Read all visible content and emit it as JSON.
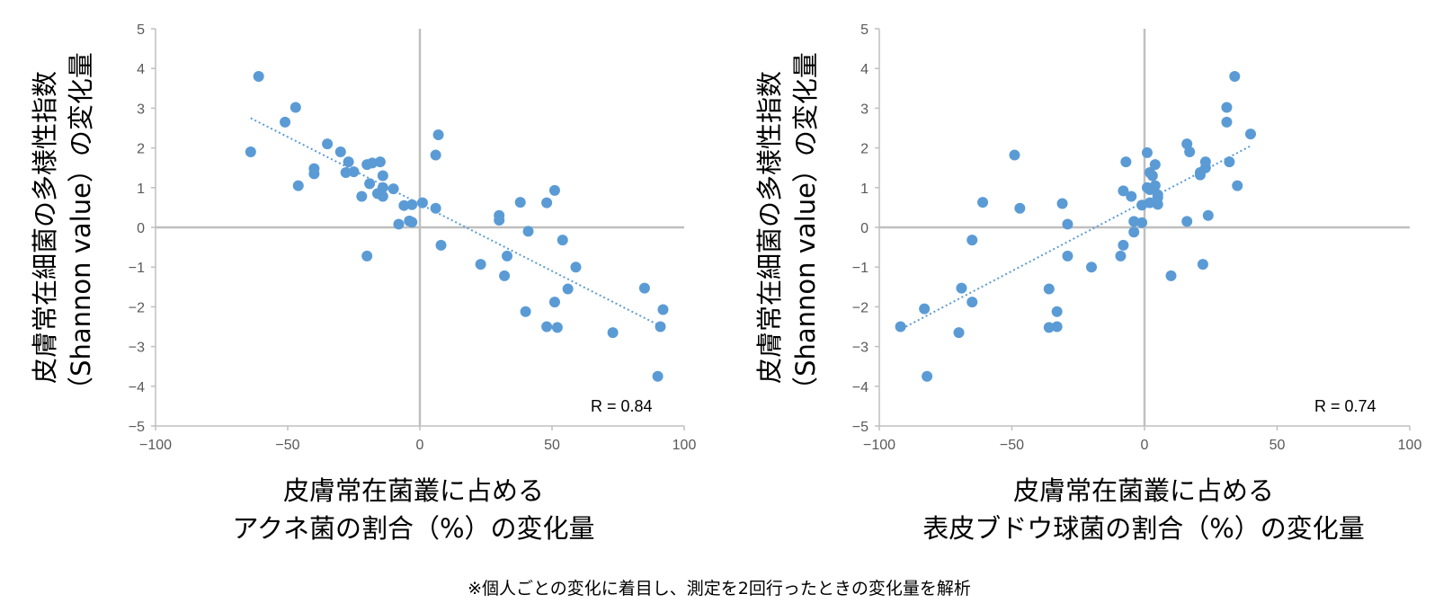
{
  "footnote": "※個人ごとの変化に着目し、測定を2回行ったときの変化量を解析",
  "colors": {
    "point": "#5b9bd5",
    "trend": "#5b9bd5",
    "axis": "#bfbfbf"
  },
  "chart_data": [
    {
      "type": "scatter",
      "title": "",
      "ylabel_line1": "皮膚常在細菌の多様性指数",
      "ylabel_line2": "（Shannon value）の変化量",
      "xlabel_line1": "皮膚常在菌叢に占める",
      "xlabel_line2": "アクネ菌の割合（%）の変化量",
      "annotation": "R = 0.84",
      "xlim": [
        -100,
        100
      ],
      "ylim": [
        -5,
        5
      ],
      "xticks": [
        -100,
        -50,
        0,
        50,
        100
      ],
      "xtick_labels": [
        "−100",
        "−50",
        "0",
        "50",
        "100"
      ],
      "yticks": [
        5,
        4,
        3,
        2,
        1,
        0,
        -1,
        -2,
        -3,
        -4,
        -5
      ],
      "ytick_labels": [
        "5",
        "4",
        "3",
        "2",
        "1",
        "0",
        "−1",
        "−2",
        "−3",
        "−4",
        "−5"
      ],
      "trendline": {
        "x": [
          -64,
          90
        ],
        "y": [
          2.75,
          -2.45
        ]
      },
      "points": [
        [
          -61,
          3.8
        ],
        [
          -64,
          1.9
        ],
        [
          -47,
          3.02
        ],
        [
          -51,
          2.65
        ],
        [
          -46,
          1.05
        ],
        [
          -35,
          2.1
        ],
        [
          -40,
          1.48
        ],
        [
          -40,
          1.35
        ],
        [
          -30,
          1.9
        ],
        [
          -27,
          1.65
        ],
        [
          -28,
          1.38
        ],
        [
          -25,
          1.4
        ],
        [
          -20,
          1.58
        ],
        [
          -18,
          1.62
        ],
        [
          -15,
          1.65
        ],
        [
          -16,
          0.85
        ],
        [
          -14,
          1.3
        ],
        [
          -14,
          1.0
        ],
        [
          -19,
          1.1
        ],
        [
          -22,
          0.78
        ],
        [
          -14,
          0.78
        ],
        [
          -10,
          0.97
        ],
        [
          -6,
          0.55
        ],
        [
          -3,
          0.57
        ],
        [
          1,
          0.62
        ],
        [
          -8,
          0.08
        ],
        [
          -4,
          0.16
        ],
        [
          -3,
          0.13
        ],
        [
          -20,
          -0.72
        ],
        [
          6,
          1.82
        ],
        [
          7,
          2.33
        ],
        [
          6,
          0.48
        ],
        [
          8,
          -0.45
        ],
        [
          30,
          0.3
        ],
        [
          30,
          0.18
        ],
        [
          38,
          0.63
        ],
        [
          41,
          -0.1
        ],
        [
          51,
          0.93
        ],
        [
          33,
          -0.72
        ],
        [
          23,
          -0.93
        ],
        [
          32,
          -1.22
        ],
        [
          54,
          -0.32
        ],
        [
          59,
          -1.0
        ],
        [
          56,
          -1.55
        ],
        [
          48,
          0.62
        ],
        [
          40,
          -2.12
        ],
        [
          51,
          -1.88
        ],
        [
          48,
          -2.5
        ],
        [
          52,
          -2.52
        ],
        [
          73,
          -2.65
        ],
        [
          85,
          -1.53
        ],
        [
          92,
          -2.07
        ],
        [
          91,
          -2.5
        ],
        [
          90,
          -3.75
        ]
      ]
    },
    {
      "type": "scatter",
      "title": "",
      "ylabel_line1": "皮膚常在細菌の多様性指数",
      "ylabel_line2": "（Shannon value）の変化量",
      "xlabel_line1": "皮膚常在菌叢に占める",
      "xlabel_line2": "表皮ブドウ球菌の割合（%）の変化量",
      "annotation": "R = 0.74",
      "xlim": [
        -100,
        100
      ],
      "ylim": [
        -5,
        5
      ],
      "xticks": [
        -100,
        -50,
        0,
        50,
        100
      ],
      "xtick_labels": [
        "−100",
        "−50",
        "0",
        "50",
        "100"
      ],
      "yticks": [
        5,
        4,
        3,
        2,
        1,
        0,
        -1,
        -2,
        -3,
        -4,
        -5
      ],
      "ytick_labels": [
        "5",
        "4",
        "3",
        "2",
        "1",
        "0",
        "−1",
        "−2",
        "−3",
        "−4",
        "−5"
      ],
      "trendline": {
        "x": [
          -90,
          40
        ],
        "y": [
          -2.5,
          2.05
        ]
      },
      "points": [
        [
          34,
          3.8
        ],
        [
          31,
          3.02
        ],
        [
          31,
          2.65
        ],
        [
          40,
          2.35
        ],
        [
          16,
          2.1
        ],
        [
          17,
          1.9
        ],
        [
          32,
          1.65
        ],
        [
          23,
          1.65
        ],
        [
          23,
          1.5
        ],
        [
          21,
          1.38
        ],
        [
          21,
          1.32
        ],
        [
          35,
          1.05
        ],
        [
          4,
          1.58
        ],
        [
          2,
          1.38
        ],
        [
          3,
          1.3
        ],
        [
          1,
          1.88
        ],
        [
          1,
          1.0
        ],
        [
          2,
          0.95
        ],
        [
          4,
          1.05
        ],
        [
          5,
          0.82
        ],
        [
          5,
          0.58
        ],
        [
          5,
          0.75
        ],
        [
          2,
          0.62
        ],
        [
          -1,
          0.56
        ],
        [
          -5,
          0.78
        ],
        [
          -8,
          0.92
        ],
        [
          -7,
          1.65
        ],
        [
          -49,
          1.82
        ],
        [
          -47,
          0.48
        ],
        [
          -61,
          0.63
        ],
        [
          -31,
          0.6
        ],
        [
          -29,
          0.08
        ],
        [
          -4,
          0.15
        ],
        [
          -1,
          0.12
        ],
        [
          -4,
          -0.12
        ],
        [
          -8,
          -0.45
        ],
        [
          -9,
          -0.72
        ],
        [
          -29,
          -0.72
        ],
        [
          -20,
          -1.0
        ],
        [
          -65,
          -0.32
        ],
        [
          16,
          0.15
        ],
        [
          24,
          0.3
        ],
        [
          10,
          -1.22
        ],
        [
          22,
          -0.93
        ],
        [
          -69,
          -1.53
        ],
        [
          -65,
          -1.88
        ],
        [
          -83,
          -2.05
        ],
        [
          -36,
          -1.55
        ],
        [
          -33,
          -2.12
        ],
        [
          -36,
          -2.52
        ],
        [
          -33,
          -2.5
        ],
        [
          -70,
          -2.65
        ],
        [
          -92,
          -2.5
        ],
        [
          -82,
          -3.75
        ]
      ]
    }
  ]
}
